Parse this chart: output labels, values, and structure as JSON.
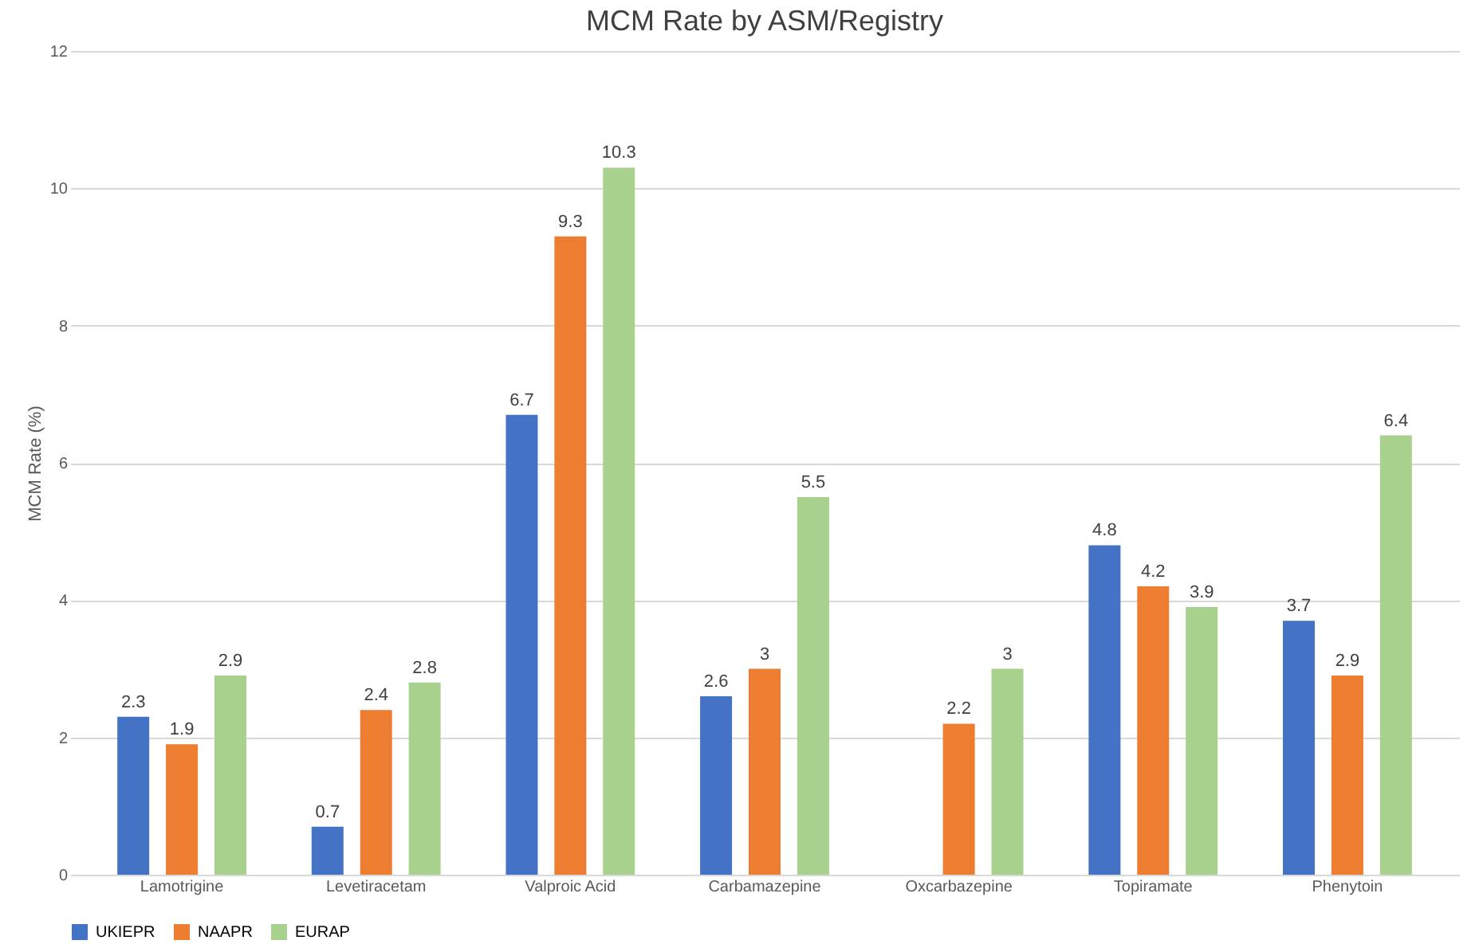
{
  "chart_data": {
    "type": "bar",
    "title": "MCM Rate by ASM/Registry",
    "ylabel": "MCM Rate (%)",
    "categories": [
      "Lamotrigine",
      "Levetiracetam",
      "Valproic Acid",
      "Carbamazepine",
      "Oxcarbazepine",
      "Topiramate",
      "Phenytoin"
    ],
    "series": [
      {
        "name": "UKIEPR",
        "color": "#4472c4",
        "values": [
          2.3,
          0.7,
          6.7,
          2.6,
          null,
          4.8,
          3.7
        ]
      },
      {
        "name": "NAAPR",
        "color": "#ed7d31",
        "values": [
          1.9,
          2.4,
          9.3,
          3,
          2.2,
          4.2,
          2.9
        ]
      },
      {
        "name": "EURAP",
        "color": "#a9d18e",
        "values": [
          2.9,
          2.8,
          10.3,
          5.5,
          3,
          3.9,
          6.4
        ]
      }
    ],
    "ylim": [
      0,
      12
    ],
    "yticks": [
      0,
      2,
      4,
      6,
      8,
      10,
      12
    ],
    "grid": "y",
    "legend": "bottom",
    "data_labels": true
  }
}
